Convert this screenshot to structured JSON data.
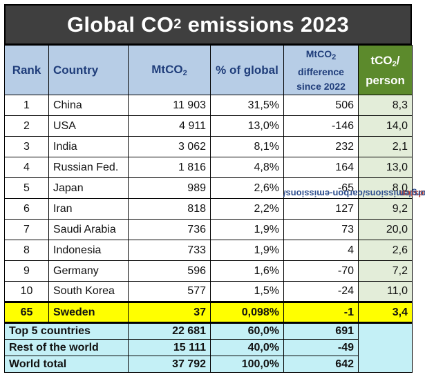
{
  "title": {
    "pre": "Global CO",
    "sub": "2",
    "post": " emissions 2023"
  },
  "headers": {
    "rank": "Rank",
    "country": "Country",
    "mtco2_pre": "MtCO",
    "mtco2_sub": "2",
    "pct": "% of global",
    "diff_pre": "MtCO",
    "diff_sub": "2",
    "diff_l2": "difference",
    "diff_l3": "since 2022",
    "percap_pre": "tCO",
    "percap_sub": "2",
    "percap_post": "/",
    "percap_l2": "person"
  },
  "rows": [
    {
      "rank": "1",
      "country": "China",
      "mt": "11 903",
      "pct": "31,5%",
      "diff": "506",
      "percap": "8,3"
    },
    {
      "rank": "2",
      "country": "USA",
      "mt": "4 911",
      "pct": "13,0%",
      "diff": "-146",
      "percap": "14,0"
    },
    {
      "rank": "3",
      "country": "India",
      "mt": "3 062",
      "pct": "8,1%",
      "diff": "232",
      "percap": "2,1"
    },
    {
      "rank": "4",
      "country": "Russian Fed.",
      "mt": "1 816",
      "pct": "4,8%",
      "diff": "164",
      "percap": "13,0"
    },
    {
      "rank": "5",
      "country": "Japan",
      "mt": "989",
      "pct": "2,6%",
      "diff": "-65",
      "percap": "8,0"
    },
    {
      "rank": "6",
      "country": "Iran",
      "mt": "818",
      "pct": "2,2%",
      "diff": "127",
      "percap": "9,2"
    },
    {
      "rank": "7",
      "country": "Saudi Arabia",
      "mt": "736",
      "pct": "1,9%",
      "diff": "73",
      "percap": "20,0"
    },
    {
      "rank": "8",
      "country": "Indonesia",
      "mt": "733",
      "pct": "1,9%",
      "diff": "4",
      "percap": "2,6"
    },
    {
      "rank": "9",
      "country": "Germany",
      "mt": "596",
      "pct": "1,6%",
      "diff": "-70",
      "percap": "7,2"
    },
    {
      "rank": "10",
      "country": "South Korea",
      "mt": "577",
      "pct": "1,5%",
      "diff": "-24",
      "percap": "11,0"
    }
  ],
  "highlight": {
    "rank": "65",
    "country": "Sweden",
    "mt": "37",
    "pct": "0,098%",
    "diff": "-1",
    "percap": "3,4"
  },
  "summary": [
    {
      "label": "Top 5 countries",
      "mt": "22 681",
      "pct": "60,0%",
      "diff": "691"
    },
    {
      "label": "Rest of the world",
      "mt": "15 111",
      "pct": "40,0%",
      "diff": "-49"
    },
    {
      "label": "World total",
      "mt": "37 792",
      "pct": "100,0%",
      "diff": "642"
    }
  ],
  "side_note": {
    "handle": "@Bladsten",
    "source": "From: https://globalcarbonatlas.org/emissions/carbon-emissions/"
  },
  "colors": {
    "title_bg": "#3f3f3f",
    "header_bg": "#b7cde6",
    "percap_header_bg": "#5c8a2c",
    "percap_cell_bg": "#e3edd9",
    "highlight_bg": "#ffff00",
    "summary_bg": "#c4f0f6"
  },
  "chart_data": {
    "type": "table",
    "title": "Global CO2 emissions 2023",
    "columns": [
      "Rank",
      "Country",
      "MtCO2",
      "% of global",
      "MtCO2 difference since 2022",
      "tCO2/ person"
    ],
    "rows": [
      [
        1,
        "China",
        11903,
        "31,5%",
        506,
        8.3
      ],
      [
        2,
        "USA",
        4911,
        "13,0%",
        -146,
        14.0
      ],
      [
        3,
        "India",
        3062,
        "8,1%",
        232,
        2.1
      ],
      [
        4,
        "Russian Fed.",
        1816,
        "4,8%",
        164,
        13.0
      ],
      [
        5,
        "Japan",
        989,
        "2,6%",
        -65,
        8.0
      ],
      [
        6,
        "Iran",
        818,
        "2,2%",
        127,
        9.2
      ],
      [
        7,
        "Saudi Arabia",
        736,
        "1,9%",
        73,
        20.0
      ],
      [
        8,
        "Indonesia",
        733,
        "1,9%",
        4,
        2.6
      ],
      [
        9,
        "Germany",
        596,
        "1,6%",
        -70,
        7.2
      ],
      [
        10,
        "South Korea",
        577,
        "1,5%",
        -24,
        11.0
      ],
      [
        65,
        "Sweden",
        37,
        "0,098%",
        -1,
        3.4
      ]
    ],
    "summary_rows": [
      [
        "Top 5 countries",
        22681,
        "60,0%",
        691
      ],
      [
        "Rest of the world",
        15111,
        "40,0%",
        -49
      ],
      [
        "World total",
        37792,
        "100,0%",
        642
      ]
    ]
  }
}
